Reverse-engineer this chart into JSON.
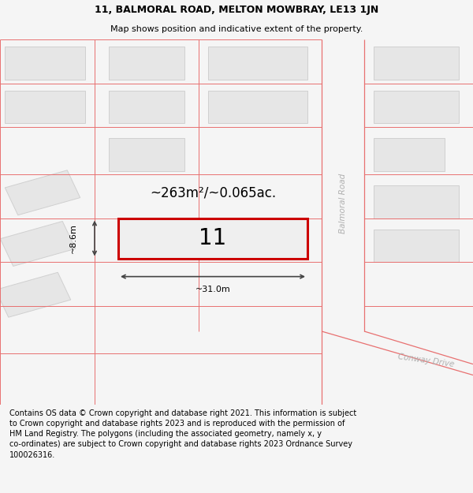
{
  "title_line1": "11, BALMORAL ROAD, MELTON MOWBRAY, LE13 1JN",
  "title_line2": "Map shows position and indicative extent of the property.",
  "footer_text": "Contains OS data © Crown copyright and database right 2021. This information is subject to Crown copyright and database rights 2023 and is reproduced with the permission of HM Land Registry. The polygons (including the associated geometry, namely x, y co-ordinates) are subject to Crown copyright and database rights 2023 Ordnance Survey 100026316.",
  "area_label": "~263m²/~0.065ac.",
  "width_label": "~31.0m",
  "height_label": "~8.6m",
  "plot_number": "11",
  "bg_color": "#f5f5f5",
  "map_bg": "#ffffff",
  "road_line_color": "#e87070",
  "dim_line_color": "#444444",
  "road_label_color": "#b0b0b0",
  "building_fill": "#e6e6e6",
  "building_edge": "#d0d0d0",
  "plot_fill": "#efefef",
  "plot_outline": "#cc0000",
  "title_fontsize": 9,
  "subtitle_fontsize": 8,
  "footer_fontsize": 7,
  "plot_number_fontsize": 20,
  "area_label_fontsize": 12,
  "dim_label_fontsize": 8
}
